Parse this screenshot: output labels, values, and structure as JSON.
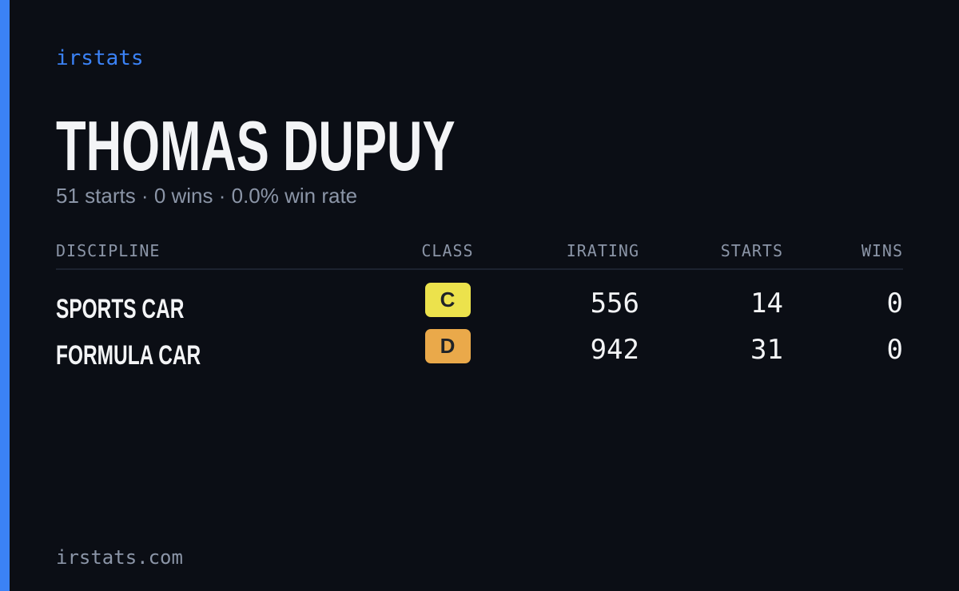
{
  "brand": "irstats",
  "driver": {
    "name": "THOMAS DUPUY",
    "summary": "51 starts · 0 wins · 0.0% win rate"
  },
  "table": {
    "columns": [
      "DISCIPLINE",
      "CLASS",
      "IRATING",
      "STARTS",
      "WINS"
    ],
    "rows": [
      {
        "discipline": "SPORTS CAR",
        "class": "C",
        "class_color": "#ece24c",
        "irating": 556,
        "starts": 14,
        "wins": 0
      },
      {
        "discipline": "FORMULA CAR",
        "class": "D",
        "class_color": "#eaa94a",
        "irating": 942,
        "starts": 31,
        "wins": 0
      }
    ]
  },
  "footer": "irstats.com"
}
